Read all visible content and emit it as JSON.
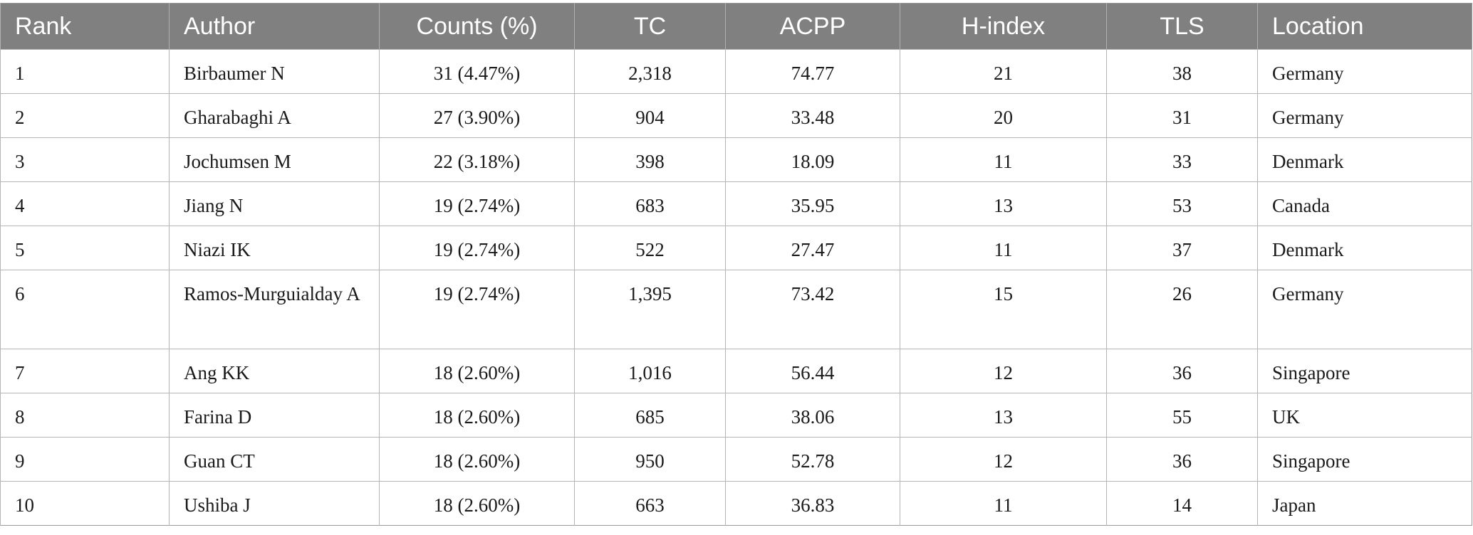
{
  "table": {
    "headers": [
      "Rank",
      "Author",
      "Counts (%)",
      "TC",
      "ACPP",
      "H-index",
      "TLS",
      "Location"
    ],
    "rows": [
      [
        "1",
        "Birbaumer N",
        "31 (4.47%)",
        "2,318",
        "74.77",
        "21",
        "38",
        "Germany"
      ],
      [
        "2",
        "Gharabaghi A",
        "27 (3.90%)",
        "904",
        "33.48",
        "20",
        "31",
        "Germany"
      ],
      [
        "3",
        "Jochumsen M",
        "22 (3.18%)",
        "398",
        "18.09",
        "11",
        "33",
        "Denmark"
      ],
      [
        "4",
        "Jiang N",
        "19 (2.74%)",
        "683",
        "35.95",
        "13",
        "53",
        "Canada"
      ],
      [
        "5",
        "Niazi IK",
        "19 (2.74%)",
        "522",
        "27.47",
        "11",
        "37",
        "Denmark"
      ],
      [
        "6",
        "Ramos-Murguialday A",
        "19 (2.74%)",
        "1,395",
        "73.42",
        "15",
        "26",
        "Germany"
      ],
      [
        "7",
        "Ang KK",
        "18 (2.60%)",
        "1,016",
        "56.44",
        "12",
        "36",
        "Singapore"
      ],
      [
        "8",
        "Farina D",
        "18 (2.60%)",
        "685",
        "38.06",
        "13",
        "55",
        "UK"
      ],
      [
        "9",
        "Guan CT",
        "18 (2.60%)",
        "950",
        "52.78",
        "12",
        "36",
        "Singapore"
      ],
      [
        "10",
        "Ushiba J",
        "18 (2.60%)",
        "663",
        "36.83",
        "11",
        "14",
        "Japan"
      ]
    ]
  }
}
